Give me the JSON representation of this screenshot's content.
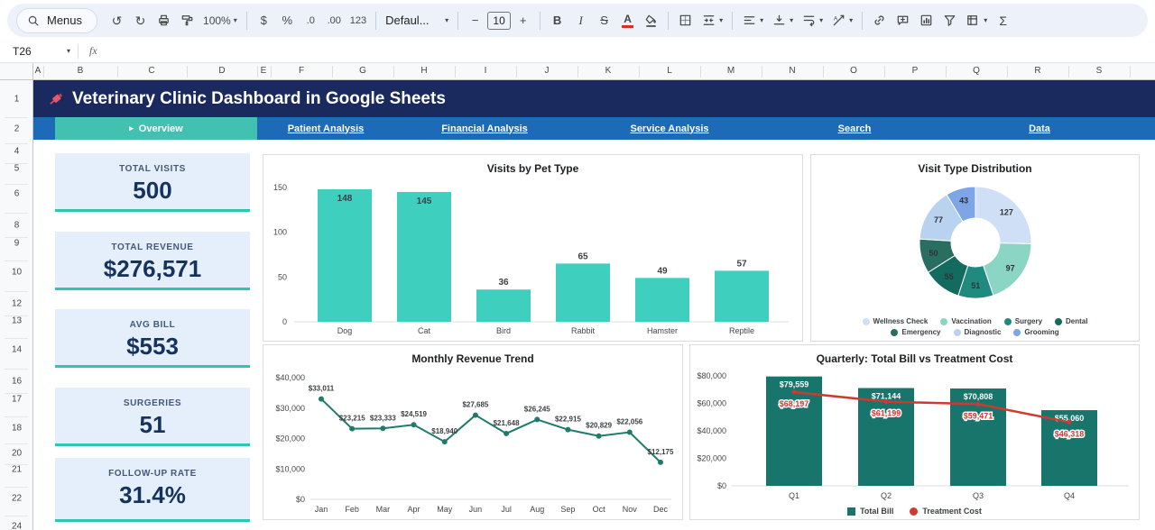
{
  "toolbar": {
    "menus_label": "Menus",
    "zoom": "100%",
    "currency": "$",
    "percent": "%",
    "decrease_decimals": ".0",
    "increase_decimals": ".00",
    "more_formats": "123",
    "font_name": "Defaul...",
    "font_size": "10",
    "bold": "B",
    "italic": "I",
    "strikethrough": "S",
    "text_color": "A",
    "functions": "Σ"
  },
  "icons": {
    "undo": "↺",
    "redo": "↻",
    "caret": "▾",
    "minus": "−",
    "plus": "+"
  },
  "formula_bar": {
    "cell_ref": "T26",
    "fx": "fx"
  },
  "grid": {
    "columns": [
      "A",
      "B",
      "C",
      "D",
      "E",
      "F",
      "G",
      "H",
      "I",
      "J",
      "K",
      "L",
      "M",
      "N",
      "O",
      "P",
      "Q",
      "R",
      "S"
    ],
    "rows": [
      "1",
      "2",
      "4",
      "5",
      "6",
      "8",
      "9",
      "10",
      "12",
      "13",
      "14",
      "16",
      "17",
      "18",
      "20",
      "21",
      "22",
      "24"
    ]
  },
  "banner": {
    "title": "Veterinary Clinic Dashboard in Google Sheets"
  },
  "nav": {
    "active_marker": "▸",
    "tabs": [
      {
        "label": "Overview",
        "active": true
      },
      {
        "label": "Patient Analysis",
        "active": false
      },
      {
        "label": "Financial Analysis",
        "active": false
      },
      {
        "label": "Service Analysis",
        "active": false
      },
      {
        "label": "Search",
        "active": false
      },
      {
        "label": "Data",
        "active": false
      }
    ]
  },
  "kpis": [
    {
      "label": "TOTAL VISITS",
      "value": "500"
    },
    {
      "label": "TOTAL REVENUE",
      "value": "$276,571"
    },
    {
      "label": "AVG BILL",
      "value": "$553"
    },
    {
      "label": "SURGERIES",
      "value": "51"
    },
    {
      "label": "FOLLOW-UP RATE",
      "value": "31.4%"
    }
  ],
  "colors": {
    "banner_bg": "#1A2A5E",
    "nav_bg": "#1D6AB9",
    "active_tab": "#43C1B0",
    "kpi_bg": "#E4EFFB",
    "kpi_accent": "#2BC7B4",
    "kpi_value": "#16335E"
  },
  "chart_data": [
    {
      "type": "bar",
      "title": "Visits by Pet Type",
      "categories": [
        "Dog",
        "Cat",
        "Bird",
        "Rabbit",
        "Hamster",
        "Reptile"
      ],
      "values": [
        148,
        145,
        36,
        65,
        49,
        57
      ],
      "ylim": [
        0,
        150
      ],
      "yticks": [
        0,
        50,
        100,
        150
      ],
      "bar_color": "#3FCFBF",
      "grid": "off",
      "legend_position": "none"
    },
    {
      "type": "pie",
      "title": "Visit Type Distribution",
      "labels": [
        "Wellness Check",
        "Vaccination",
        "Surgery",
        "Dental",
        "Emergency",
        "Diagnostic",
        "Grooming"
      ],
      "values": [
        127,
        97,
        51,
        55,
        50,
        77,
        43
      ],
      "colors": [
        "#CFE0F6",
        "#8BD5C4",
        "#1F8A7D",
        "#136B60",
        "#2A6E62",
        "#B9D2F0",
        "#7EA6E6"
      ],
      "donut": true,
      "legend_position": "bottom"
    },
    {
      "type": "line",
      "title": "Monthly Revenue Trend",
      "categories": [
        "Jan",
        "Feb",
        "Mar",
        "Apr",
        "May",
        "Jun",
        "Jul",
        "Aug",
        "Sep",
        "Oct",
        "Nov",
        "Dec"
      ],
      "values": [
        33011,
        23215,
        23333,
        24519,
        18940,
        27685,
        21648,
        26245,
        22915,
        20829,
        22056,
        12175
      ],
      "point_labels": [
        "$33,011",
        "$23,215",
        "$23,333",
        "$24,519",
        "$18,940",
        "$27,685",
        "$21,648",
        "$26,245",
        "$22,915",
        "$20,829",
        "$22,056",
        "$12,175"
      ],
      "ylim": [
        0,
        40000
      ],
      "ytick_labels": [
        "$0",
        "$10,000",
        "$20,000",
        "$30,000",
        "$40,000"
      ],
      "line_color": "#1E7B6A",
      "grid": "off",
      "legend_position": "none"
    },
    {
      "type": "bar-line-combo",
      "title": "Quarterly: Total Bill vs Treatment Cost",
      "categories": [
        "Q1",
        "Q2",
        "Q3",
        "Q4"
      ],
      "series": [
        {
          "name": "Total Bill",
          "type": "bar",
          "color": "#17756B",
          "values": [
            79559,
            71144,
            70808,
            55060
          ],
          "labels": [
            "$79,559",
            "$71,144",
            "$70,808",
            "$55,060"
          ]
        },
        {
          "name": "Treatment Cost",
          "type": "line",
          "color": "#CE3A32",
          "values": [
            68197,
            61199,
            59471,
            46318
          ],
          "labels": [
            "$68,197",
            "$61,199",
            "$59,471",
            "$46,318"
          ]
        }
      ],
      "ylim": [
        0,
        80000
      ],
      "ytick_labels": [
        "$0",
        "$20,000",
        "$40,000",
        "$60,000",
        "$80,000"
      ],
      "legend_position": "bottom"
    }
  ]
}
